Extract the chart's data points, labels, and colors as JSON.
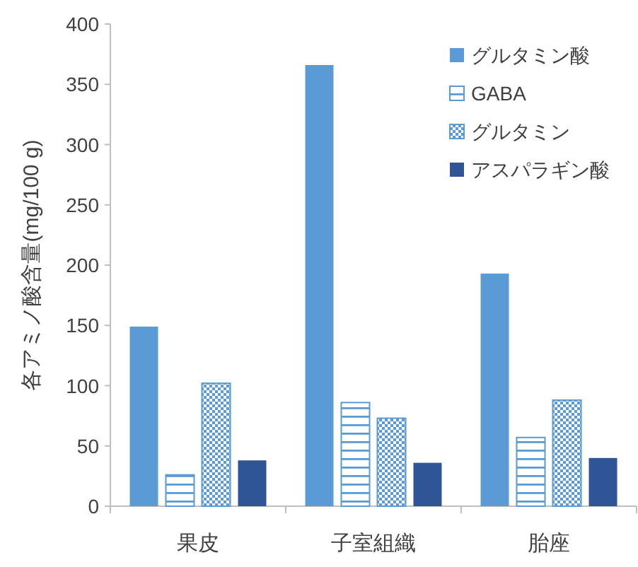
{
  "chart_data": {
    "type": "bar",
    "ylabel": "各アミノ酸含量(mg/100 g)",
    "categories": [
      "果皮",
      "子室組織",
      "胎座"
    ],
    "series": [
      {
        "name": "グルタミン酸",
        "color": "#5b9bd5",
        "values": [
          149,
          366,
          193
        ]
      },
      {
        "name": "GABA",
        "color": "#5b9bd5",
        "values": [
          26,
          86,
          57
        ]
      },
      {
        "name": "グルタミン",
        "color": "#5b9bd5",
        "values": [
          102,
          73,
          88
        ]
      },
      {
        "name": "アスパラギン酸",
        "color": "#2f5597",
        "values": [
          38,
          36,
          40
        ]
      }
    ],
    "ylim": [
      0,
      400
    ],
    "yticks": [
      0,
      50,
      100,
      150,
      200,
      250,
      300,
      350,
      400
    ],
    "grid": false,
    "legend": "top right"
  }
}
